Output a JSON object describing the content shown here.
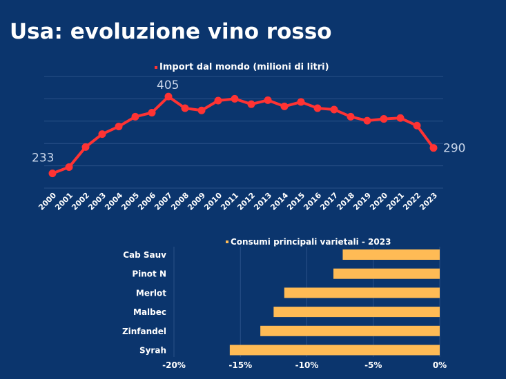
{
  "page": {
    "title": "Usa: evoluzione vino rosso",
    "background": "#0b356d"
  },
  "line_legend": {
    "label": "Import dal mondo (milioni di litri)",
    "color": "#ff3333"
  },
  "bar_legend": {
    "label": "Consumi principali varietali - 2023",
    "color": "#ffbb55"
  },
  "chart_data": [
    {
      "type": "line",
      "title": "Import dal mondo (milioni di litri)",
      "xlabel": "",
      "ylabel": "",
      "x": [
        "2000",
        "2001",
        "2002",
        "2003",
        "2004",
        "2005",
        "2006",
        "2007",
        "2008",
        "2009",
        "2010",
        "2011",
        "2012",
        "2013",
        "2014",
        "2015",
        "2016",
        "2017",
        "2018",
        "2019",
        "2020",
        "2021",
        "2022",
        "2023"
      ],
      "series": [
        {
          "name": "Import dal mondo (milioni di litri)",
          "color": "#ff3333",
          "values": [
            233,
            247,
            292,
            321,
            338,
            360,
            369,
            405,
            379,
            374,
            396,
            400,
            388,
            397,
            383,
            393,
            379,
            376,
            360,
            351,
            355,
            357,
            340,
            290
          ]
        }
      ],
      "annotations": [
        {
          "x": "2000",
          "label": "233"
        },
        {
          "x": "2007",
          "label": "405"
        },
        {
          "x": "2023",
          "label": "290"
        }
      ],
      "ylim": [
        200,
        450
      ],
      "grid": true,
      "ytick_labels_visible": false,
      "legend_position": "top"
    },
    {
      "type": "bar",
      "orientation": "horizontal",
      "title": "Consumi principali varietali - 2023",
      "categories": [
        "Cab Sauv",
        "Pinot N",
        "Merlot",
        "Malbec",
        "Zinfandel",
        "Syrah"
      ],
      "values": [
        -7.3,
        -8.0,
        -11.7,
        -12.5,
        -13.5,
        -15.8
      ],
      "unit": "%",
      "color": "#ffbb55",
      "xlim": [
        -20,
        0
      ],
      "xticks": [
        "-20%",
        "-15%",
        "-10%",
        "-5%",
        "0%"
      ],
      "grid": true,
      "legend_position": "top"
    }
  ]
}
